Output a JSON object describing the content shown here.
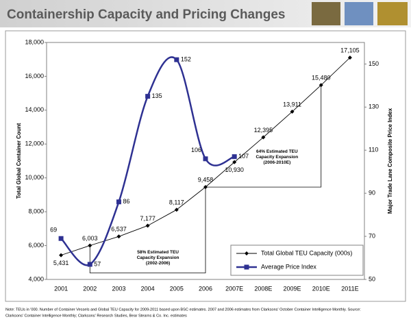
{
  "chart_data": {
    "type": "line",
    "title": "Containership Capacity and Pricing Changes",
    "categories": [
      "2001",
      "2002",
      "2003",
      "2004",
      "2005",
      "2006",
      "2007E",
      "2008E",
      "2009E",
      "2010E",
      "2011E"
    ],
    "series": [
      {
        "name": "Total Global TEU Capacity (000s)",
        "color": "#000000",
        "axis": "y",
        "values": [
          5431,
          6003,
          6537,
          7177,
          8117,
          9458,
          10930,
          12395,
          13911,
          15480,
          17105
        ],
        "value_labels": [
          "5,431",
          "6,003",
          "6,537",
          "7,177",
          "8,117",
          "9,458",
          "10,930",
          "12,395",
          "13,911",
          "15,480",
          "17,105"
        ]
      },
      {
        "name": "Average Price Index",
        "color": "#2e3192",
        "axis": "y2",
        "values": [
          69,
          57,
          86,
          135,
          152,
          106,
          107,
          null,
          null,
          null,
          null
        ]
      }
    ],
    "ylabel": "Total Global Container Count",
    "y2label": "Major Trade Lane Composite Price Index",
    "ylim": [
      4000,
      18000
    ],
    "yticks": [
      {
        "value": 4000,
        "label": "4,000"
      },
      {
        "value": 6000,
        "label": "6,000"
      },
      {
        "value": 8000,
        "label": "8,000"
      },
      {
        "value": 10000,
        "label": "10,000"
      },
      {
        "value": 12000,
        "label": "12,000"
      },
      {
        "value": 14000,
        "label": "14,000"
      },
      {
        "value": 16000,
        "label": "16,000"
      },
      {
        "value": 18000,
        "label": "18,000"
      }
    ],
    "y2lim": [
      50,
      160
    ],
    "y2ticks": [
      50,
      70,
      90,
      110,
      130,
      150
    ],
    "annotations": [
      {
        "lines": [
          "58% Estimated TEU",
          "Capacity Expansion",
          "(2002-2006)"
        ]
      },
      {
        "lines": [
          "64% Estimated TEU",
          "Capacity Expansion",
          "(2006-2010E)"
        ]
      }
    ],
    "legend": "lower right",
    "note": [
      "Note: TEUs in '000. Number of Container Vessels and Global TEU Capacity for 2009-2011 based upon BSC estimates. 2007 and 2006 estimates from Clarksons' October Container Intelligence Monthly. Source:",
      "Clarksons' Container Intelligence Monthly; Clarksons' Research Studies, Bear Stearns & Co. Inc. estimates"
    ]
  }
}
